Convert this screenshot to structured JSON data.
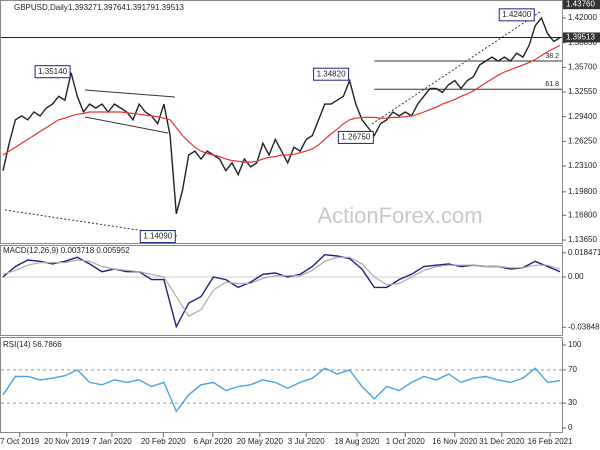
{
  "chart_data": [
    {
      "type": "line",
      "title": "GBPUSD,Daily",
      "ohlc": [
        1.39327,
        1.39764,
        1.39179,
        1.39513
      ],
      "watermark": "ActionForex.com",
      "x": [
        0,
        1,
        2,
        3,
        4,
        5,
        6,
        7,
        8,
        9,
        10,
        11,
        12,
        13,
        14,
        15,
        16,
        17,
        18,
        19,
        20,
        21,
        22,
        23,
        24,
        25,
        26,
        27,
        28,
        29,
        30,
        31,
        32,
        33,
        34,
        35,
        36,
        37,
        38,
        39,
        40,
        41,
        42,
        43,
        44,
        45,
        46,
        47,
        48,
        49,
        50,
        51,
        52,
        53,
        54,
        55,
        56,
        57,
        58,
        59,
        60,
        61,
        62,
        63,
        64,
        65,
        66,
        67,
        68,
        69,
        70,
        71,
        72,
        73,
        74,
        75,
        76,
        77,
        78,
        79,
        80,
        81,
        82,
        83,
        84,
        85,
        86,
        87,
        88,
        89,
        90
      ],
      "xlim": [
        0,
        90
      ],
      "ylim": [
        1.1327,
        1.4404
      ],
      "yticks": [
        {
          "value": 1.1365,
          "label": "1.13650"
        },
        {
          "value": 1.168,
          "label": "1.16800"
        },
        {
          "value": 1.198,
          "label": "1.19800"
        },
        {
          "value": 1.231,
          "label": "1.23100"
        },
        {
          "value": 1.2625,
          "label": "1.26250"
        },
        {
          "value": 1.294,
          "label": "1.29400"
        },
        {
          "value": 1.3255,
          "label": "1.32550"
        },
        {
          "value": 1.357,
          "label": "1.35700"
        },
        {
          "value": 1.3885,
          "label": "1.38850"
        },
        {
          "value": 1.42,
          "label": "1.42000"
        }
      ],
      "series": [
        {
          "name": "Close",
          "color": "#222222",
          "values": [
            1.225,
            1.26,
            1.29,
            1.295,
            1.29,
            1.3,
            1.295,
            1.305,
            1.31,
            1.32,
            1.315,
            1.35,
            1.32,
            1.3,
            1.31,
            1.305,
            1.31,
            1.3,
            1.31,
            1.305,
            1.3,
            1.29,
            1.31,
            1.3,
            1.295,
            1.285,
            1.31,
            1.27,
            1.17,
            1.2,
            1.245,
            1.25,
            1.24,
            1.25,
            1.245,
            1.24,
            1.225,
            1.235,
            1.22,
            1.24,
            1.23,
            1.235,
            1.26,
            1.245,
            1.265,
            1.25,
            1.235,
            1.255,
            1.25,
            1.265,
            1.27,
            1.29,
            1.31,
            1.31,
            1.315,
            1.32,
            1.34,
            1.31,
            1.29,
            1.28,
            1.27,
            1.285,
            1.29,
            1.3,
            1.295,
            1.3,
            1.295,
            1.31,
            1.32,
            1.33,
            1.33,
            1.325,
            1.335,
            1.34,
            1.33,
            1.34,
            1.345,
            1.36,
            1.365,
            1.37,
            1.365,
            1.37,
            1.365,
            1.375,
            1.37,
            1.385,
            1.41,
            1.42,
            1.4,
            1.39,
            1.395
          ]
        },
        {
          "name": "MA",
          "color": "#e8322e",
          "values": [
            1.245,
            1.25,
            1.255,
            1.26,
            1.265,
            1.27,
            1.275,
            1.28,
            1.285,
            1.29,
            1.292,
            1.295,
            1.297,
            1.298,
            1.3,
            1.3,
            1.3,
            1.3,
            1.3,
            1.3,
            1.299,
            1.298,
            1.297,
            1.296,
            1.295,
            1.294,
            1.292,
            1.29,
            1.28,
            1.27,
            1.262,
            1.255,
            1.25,
            1.247,
            1.245,
            1.243,
            1.24,
            1.238,
            1.237,
            1.236,
            1.236,
            1.237,
            1.24,
            1.242,
            1.243,
            1.245,
            1.245,
            1.246,
            1.248,
            1.25,
            1.253,
            1.258,
            1.265,
            1.272,
            1.278,
            1.285,
            1.29,
            1.292,
            1.293,
            1.293,
            1.293,
            1.292,
            1.292,
            1.293,
            1.293,
            1.294,
            1.295,
            1.297,
            1.3,
            1.303,
            1.306,
            1.31,
            1.313,
            1.316,
            1.32,
            1.323,
            1.327,
            1.332,
            1.337,
            1.342,
            1.347,
            1.351,
            1.354,
            1.357,
            1.36,
            1.363,
            1.367,
            1.372,
            1.377,
            1.381,
            1.385
          ]
        }
      ],
      "markers": [
        {
          "value": 1.4376,
          "label": "1.43760"
        },
        {
          "value": 1.39513,
          "label": "1.39513"
        }
      ],
      "levels": [
        {
          "label": "38.2",
          "value": 1.365,
          "x": 60
        },
        {
          "label": "61.8",
          "value": 1.329,
          "x": 60
        }
      ],
      "annotations": [
        {
          "label": "1.35140",
          "value": 1.3514,
          "x": 11
        },
        {
          "label": "1.14090",
          "value": 1.1409,
          "x": 28
        },
        {
          "label": "1.34820",
          "value": 1.3482,
          "x": 56
        },
        {
          "label": "1.26750",
          "value": 1.2675,
          "x": 60
        },
        {
          "label": "1.42400",
          "value": 1.424,
          "x": 86
        }
      ]
    },
    {
      "type": "line",
      "title": "MACD(12,26,9) 0.003718 0.005952",
      "x": [
        0,
        2,
        4,
        6,
        8,
        10,
        12,
        14,
        16,
        18,
        20,
        22,
        24,
        26,
        28,
        30,
        32,
        34,
        36,
        38,
        40,
        42,
        44,
        46,
        48,
        50,
        52,
        54,
        56,
        58,
        60,
        62,
        64,
        66,
        68,
        70,
        72,
        74,
        76,
        78,
        80,
        82,
        84,
        86,
        88,
        90
      ],
      "xlim": [
        0,
        90
      ],
      "ylim": [
        -0.0436,
        0.0229
      ],
      "yticks": [
        {
          "value": -0.038486,
          "label": "-0.038486"
        },
        {
          "value": 0,
          "label": "0.00"
        },
        0.018471
      ],
      "series": [
        {
          "name": "MACD",
          "color": "#1a237e",
          "values": [
            0.0,
            0.008,
            0.013,
            0.012,
            0.01,
            0.012,
            0.015,
            0.01,
            0.004,
            0.006,
            0.004,
            0.004,
            -0.002,
            -0.002,
            -0.038,
            -0.02,
            -0.015,
            0.0,
            -0.002,
            -0.008,
            -0.004,
            0.002,
            0.003,
            0.0,
            0.002,
            0.008,
            0.017,
            0.016,
            0.014,
            0.006,
            -0.008,
            -0.008,
            -0.002,
            0.002,
            0.008,
            0.009,
            0.01,
            0.008,
            0.009,
            0.008,
            0.008,
            0.006,
            0.007,
            0.012,
            0.008,
            0.004
          ]
        },
        {
          "name": "Signal",
          "color": "#aaaaaa",
          "values": [
            0.002,
            0.005,
            0.009,
            0.011,
            0.011,
            0.011,
            0.013,
            0.012,
            0.008,
            0.006,
            0.005,
            0.004,
            0.002,
            0.0,
            -0.015,
            -0.03,
            -0.025,
            -0.01,
            -0.004,
            -0.005,
            -0.005,
            -0.001,
            0.001,
            0.001,
            0.001,
            0.005,
            0.012,
            0.015,
            0.015,
            0.01,
            0.0,
            -0.006,
            -0.005,
            0.0,
            0.005,
            0.008,
            0.009,
            0.009,
            0.009,
            0.008,
            0.008,
            0.007,
            0.007,
            0.009,
            0.009,
            0.006
          ]
        }
      ]
    },
    {
      "type": "line",
      "title": "RSI(14) 56.7866",
      "x": [
        0,
        2,
        4,
        6,
        8,
        10,
        12,
        14,
        16,
        18,
        20,
        22,
        24,
        26,
        28,
        30,
        32,
        34,
        36,
        38,
        40,
        42,
        44,
        46,
        48,
        50,
        52,
        54,
        56,
        58,
        60,
        62,
        64,
        66,
        68,
        70,
        72,
        74,
        76,
        78,
        80,
        82,
        84,
        86,
        88,
        90
      ],
      "xlim": [
        0,
        90
      ],
      "ylim": [
        0,
        100
      ],
      "yticks": [
        0,
        30,
        70,
        100
      ],
      "series": [
        {
          "name": "RSI",
          "color": "#4aa3e0",
          "values": [
            40,
            62,
            62,
            58,
            60,
            63,
            70,
            55,
            52,
            58,
            55,
            58,
            50,
            55,
            20,
            40,
            52,
            55,
            45,
            50,
            52,
            58,
            55,
            48,
            55,
            60,
            72,
            65,
            70,
            50,
            35,
            50,
            45,
            55,
            62,
            58,
            65,
            55,
            60,
            62,
            58,
            55,
            60,
            72,
            55,
            57
          ]
        }
      ],
      "xticks": [
        {
          "value": 2.7,
          "label": "7 Oct 2019"
        },
        {
          "value": 10.3,
          "label": "20 Nov 2019"
        },
        {
          "value": 17.6,
          "label": "7 Jan 2020"
        },
        {
          "value": 25.9,
          "label": "20 Feb 2020"
        },
        {
          "value": 33.9,
          "label": "6 Apr 2020"
        },
        {
          "value": 41.5,
          "label": "20 May 2020"
        },
        {
          "value": 49,
          "label": "3 Jul 2020"
        },
        {
          "value": 57.2,
          "label": "18 Aug 2020"
        },
        {
          "value": 65,
          "label": "1 Oct 2020"
        },
        {
          "value": 73,
          "label": "16 Nov 2020"
        },
        {
          "value": 80.6,
          "label": "31 Dec 2020"
        },
        {
          "value": 88.4,
          "label": "16 Feb 2021"
        }
      ]
    }
  ]
}
